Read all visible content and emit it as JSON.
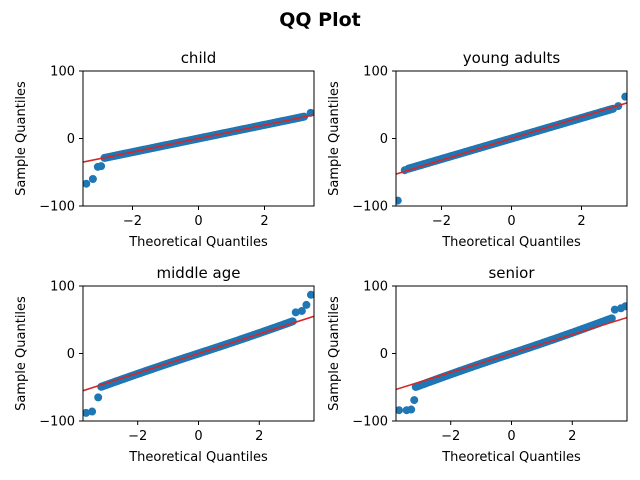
{
  "chart_data": {
    "title": "QQ Plot",
    "type": "scatter",
    "subplots": [
      {
        "title": "child",
        "xlabel": "Theoretical Quantiles",
        "ylabel": "Sample Quantiles",
        "xlim": [
          -3.5,
          3.5
        ],
        "ylim": [
          -100,
          100
        ],
        "xticks": [
          -2,
          0,
          2
        ],
        "yticks": [
          -100,
          0,
          100
        ],
        "xtick_labels": [
          "−2",
          "0",
          "2"
        ],
        "ytick_labels": [
          "−100",
          "0",
          "100"
        ],
        "fit_line": {
          "slope": 10,
          "intercept": 0
        },
        "outliers": [
          [
            -3.4,
            -67
          ],
          [
            -3.2,
            -60
          ],
          [
            -3.05,
            -42
          ],
          [
            -2.95,
            -41
          ],
          [
            3.4,
            38
          ]
        ],
        "body": {
          "x_start": -2.85,
          "x_end": 3.2,
          "slope": 10.1,
          "intercept": 0,
          "curve": 0
        }
      },
      {
        "title": "young adults",
        "xlabel": "Theoretical Quantiles",
        "ylabel": "Sample Quantiles",
        "xlim": [
          -3.3,
          3.3
        ],
        "ylim": [
          -100,
          100
        ],
        "xticks": [
          -2,
          0,
          2
        ],
        "yticks": [
          -100,
          0,
          100
        ],
        "xtick_labels": [
          "−2",
          "0",
          "2"
        ],
        "ytick_labels": [
          "−100",
          "0",
          "100"
        ],
        "fit_line": {
          "slope": 16,
          "intercept": 0
        },
        "outliers": [
          [
            -3.25,
            -92
          ],
          [
            -3.05,
            -47
          ],
          [
            3.05,
            48
          ],
          [
            3.25,
            62
          ]
        ],
        "body": {
          "x_start": -2.95,
          "x_end": 2.9,
          "slope": 15.2,
          "intercept": 0,
          "curve": 0
        }
      },
      {
        "title": "middle age",
        "xlabel": "Theoretical Quantiles",
        "ylabel": "Sample Quantiles",
        "xlim": [
          -3.8,
          3.8
        ],
        "ylim": [
          -100,
          100
        ],
        "xticks": [
          -2,
          0,
          2
        ],
        "yticks": [
          -100,
          0,
          100
        ],
        "xtick_labels": [
          "−2",
          "0",
          "2"
        ],
        "ytick_labels": [
          "−100",
          "0",
          "100"
        ],
        "fit_line": {
          "slope": 14.5,
          "intercept": 0
        },
        "outliers": [
          [
            -3.7,
            -88
          ],
          [
            -3.5,
            -86
          ],
          [
            -3.3,
            -65
          ],
          [
            3.2,
            61
          ],
          [
            3.4,
            63
          ],
          [
            3.55,
            72
          ],
          [
            3.7,
            87
          ]
        ],
        "body": {
          "x_start": -3.2,
          "x_end": 3.1,
          "slope": 14.6,
          "intercept": 0,
          "curve": 0.25
        }
      },
      {
        "title": "senior",
        "xlabel": "Theoretical Quantiles",
        "ylabel": "Sample Quantiles",
        "xlim": [
          -3.8,
          3.8
        ],
        "ylim": [
          -100,
          100
        ],
        "xticks": [
          -2,
          0,
          2
        ],
        "yticks": [
          -100,
          0,
          100
        ],
        "xtick_labels": [
          "−2",
          "0",
          "2"
        ],
        "ytick_labels": [
          "−100",
          "0",
          "100"
        ],
        "fit_line": {
          "slope": 14,
          "intercept": 0
        },
        "outliers": [
          [
            -3.7,
            -84
          ],
          [
            -3.45,
            -84
          ],
          [
            -3.3,
            -83
          ],
          [
            -3.2,
            -69
          ],
          [
            3.4,
            65
          ],
          [
            3.6,
            67
          ],
          [
            3.75,
            70
          ]
        ],
        "body": {
          "x_start": -3.15,
          "x_end": 3.3,
          "slope": 14.8,
          "intercept": 0,
          "curve": 0.3
        }
      }
    ]
  }
}
